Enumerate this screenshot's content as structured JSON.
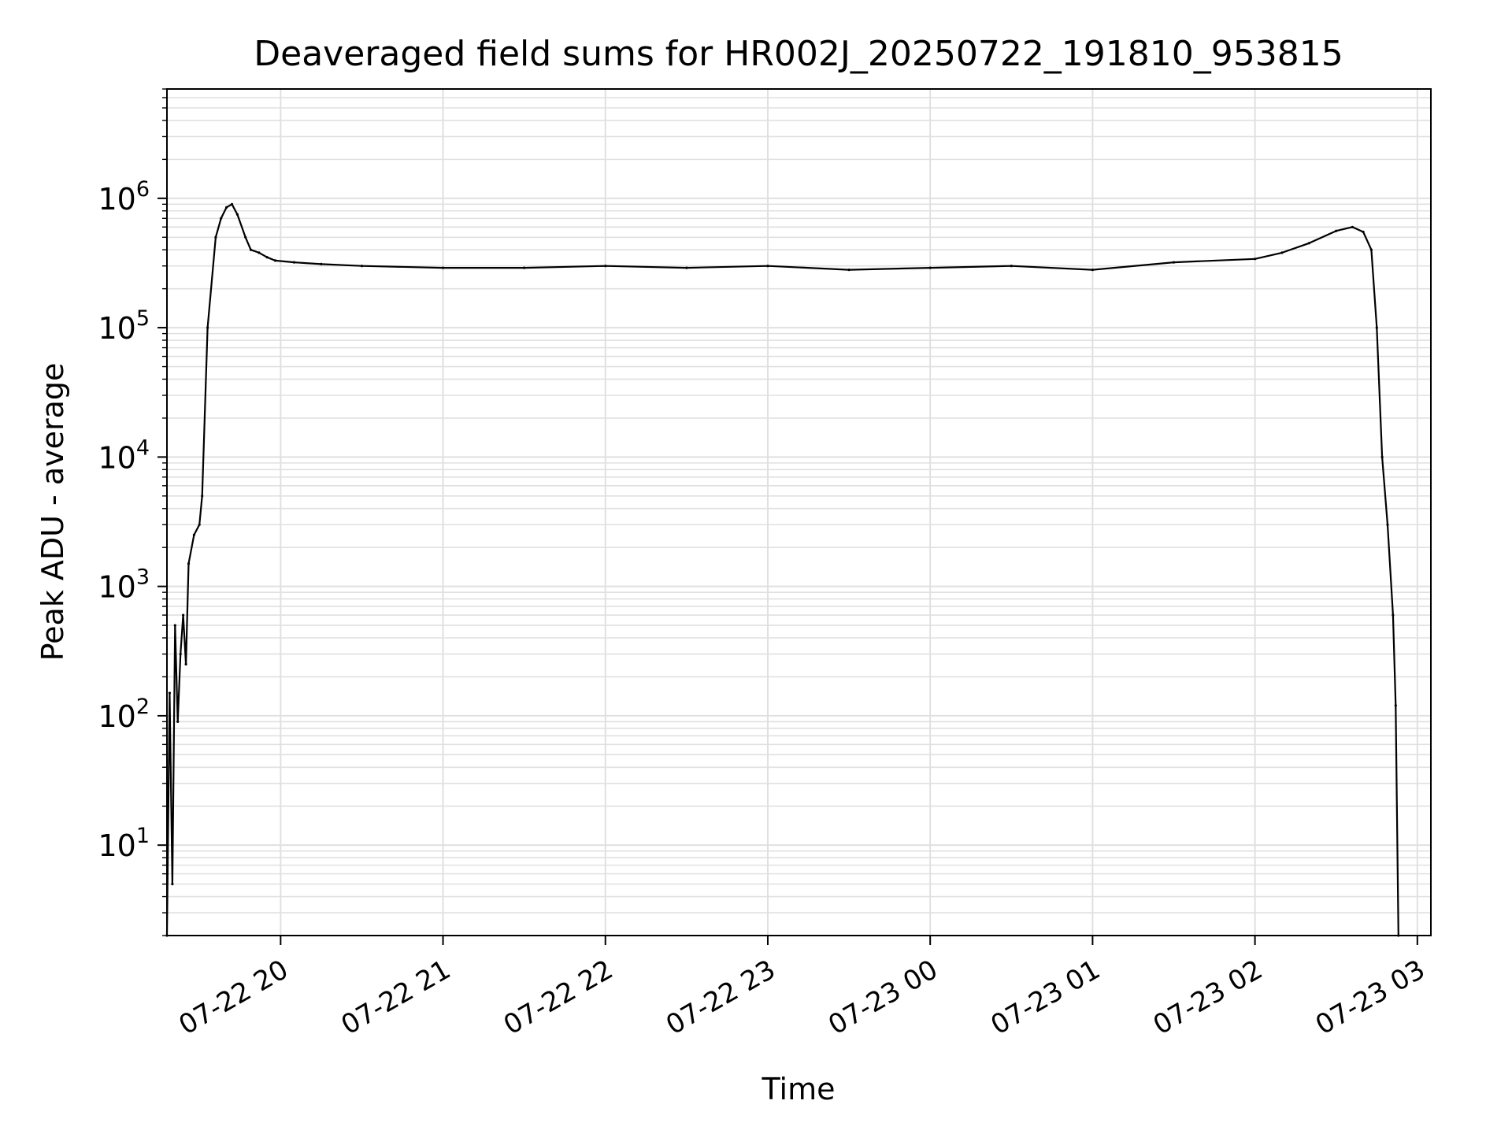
{
  "chart_data": {
    "type": "line",
    "title": "Deaveraged field sums for HR002J_20250722_191810_953815",
    "xlabel": "Time",
    "ylabel": "Peak ADU - average",
    "xscale": "date",
    "yscale": "log",
    "xlim": [
      "2025-07-22 19:18",
      "2025-07-23 03:05"
    ],
    "ylim": [
      2,
      7000000
    ],
    "grid": true,
    "legend": "none",
    "line_color": "#000000",
    "grid_color": "#e0e0e0",
    "x_ticks": [
      {
        "value": "2025-07-22 20:00",
        "label": "07-22 20"
      },
      {
        "value": "2025-07-22 21:00",
        "label": "07-22 21"
      },
      {
        "value": "2025-07-22 22:00",
        "label": "07-22 22"
      },
      {
        "value": "2025-07-22 23:00",
        "label": "07-22 23"
      },
      {
        "value": "2025-07-23 00:00",
        "label": "07-23 00"
      },
      {
        "value": "2025-07-23 01:00",
        "label": "07-23 01"
      },
      {
        "value": "2025-07-23 02:00",
        "label": "07-23 02"
      },
      {
        "value": "2025-07-23 03:00",
        "label": "07-23 03"
      }
    ],
    "y_ticks": [
      {
        "value": 10,
        "base": "10",
        "exp": "1"
      },
      {
        "value": 100,
        "base": "10",
        "exp": "2"
      },
      {
        "value": 1000,
        "base": "10",
        "exp": "3"
      },
      {
        "value": 10000,
        "base": "10",
        "exp": "4"
      },
      {
        "value": 100000,
        "base": "10",
        "exp": "5"
      },
      {
        "value": 1000000,
        "base": "10",
        "exp": "6"
      }
    ],
    "series": [
      {
        "x": [
          "2025-07-22 19:18",
          "2025-07-22 19:19",
          "2025-07-22 19:20",
          "2025-07-22 19:21",
          "2025-07-22 19:22",
          "2025-07-22 19:23",
          "2025-07-22 19:24",
          "2025-07-22 19:25",
          "2025-07-22 19:26",
          "2025-07-22 19:28",
          "2025-07-22 19:30",
          "2025-07-22 19:31",
          "2025-07-22 19:33",
          "2025-07-22 19:36",
          "2025-07-22 19:38",
          "2025-07-22 19:40",
          "2025-07-22 19:42",
          "2025-07-22 19:44",
          "2025-07-22 19:47",
          "2025-07-22 19:49",
          "2025-07-22 19:52",
          "2025-07-22 19:55",
          "2025-07-22 19:58",
          "2025-07-22 20:05",
          "2025-07-22 20:15",
          "2025-07-22 20:30",
          "2025-07-22 21:00",
          "2025-07-22 21:30",
          "2025-07-22 22:00",
          "2025-07-22 22:30",
          "2025-07-22 23:00",
          "2025-07-22 23:30",
          "2025-07-23 00:00",
          "2025-07-23 00:30",
          "2025-07-23 01:00",
          "2025-07-23 01:30",
          "2025-07-23 02:00",
          "2025-07-23 02:10",
          "2025-07-23 02:20",
          "2025-07-23 02:30",
          "2025-07-23 02:36",
          "2025-07-23 02:40",
          "2025-07-23 02:43",
          "2025-07-23 02:45",
          "2025-07-23 02:47",
          "2025-07-23 02:49",
          "2025-07-23 02:51",
          "2025-07-23 02:52",
          "2025-07-23 02:53"
        ],
        "values": [
          2,
          150,
          5,
          500,
          90,
          300,
          600,
          250,
          1500,
          2500,
          3000,
          5000,
          100000,
          500000,
          700000,
          850000,
          900000,
          750000,
          500000,
          400000,
          380000,
          350000,
          330000,
          320000,
          310000,
          300000,
          290000,
          290000,
          300000,
          290000,
          300000,
          280000,
          290000,
          300000,
          280000,
          320000,
          340000,
          380000,
          450000,
          560000,
          600000,
          550000,
          400000,
          100000,
          10000,
          3000,
          600,
          120,
          2
        ]
      }
    ]
  }
}
